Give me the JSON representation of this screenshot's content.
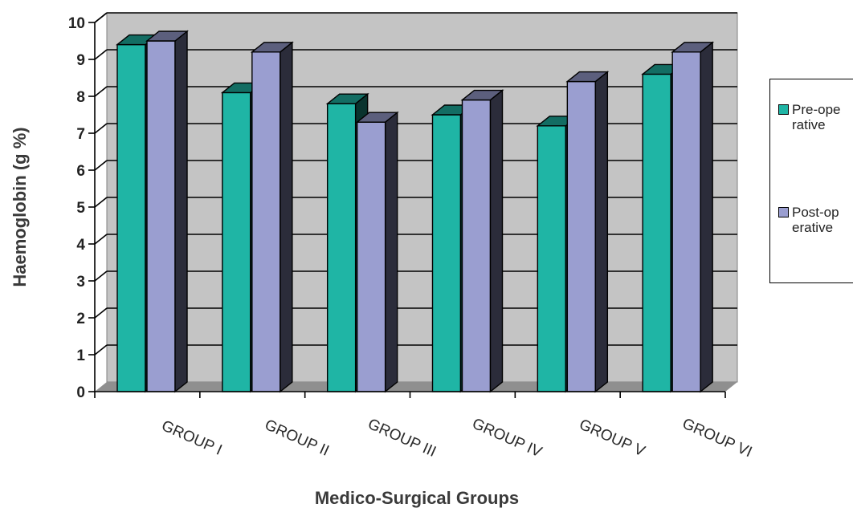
{
  "chart_data": {
    "type": "bar",
    "style": "3d-clustered-column",
    "categories": [
      "GROUP I",
      "GROUP II",
      "GROUP III",
      "GROUP IV",
      "GROUP V",
      "GROUP VI"
    ],
    "series": [
      {
        "name": "Pre-operative",
        "values": [
          9.4,
          8.1,
          7.8,
          7.5,
          7.2,
          8.6
        ],
        "color": "#1fb5a5"
      },
      {
        "name": "Post-operative",
        "values": [
          9.5,
          9.2,
          7.3,
          7.9,
          8.4,
          9.2
        ],
        "color": "#9a9ed0"
      }
    ],
    "xlabel": "Medico-Surgical Groups",
    "ylabel": "Haemoglobin (g %)",
    "ylim": [
      0,
      10
    ],
    "yticks": [
      "0",
      "1",
      "2",
      "3",
      "4",
      "5",
      "6",
      "7",
      "8",
      "9",
      "10"
    ],
    "grid": true,
    "legend": "right"
  }
}
